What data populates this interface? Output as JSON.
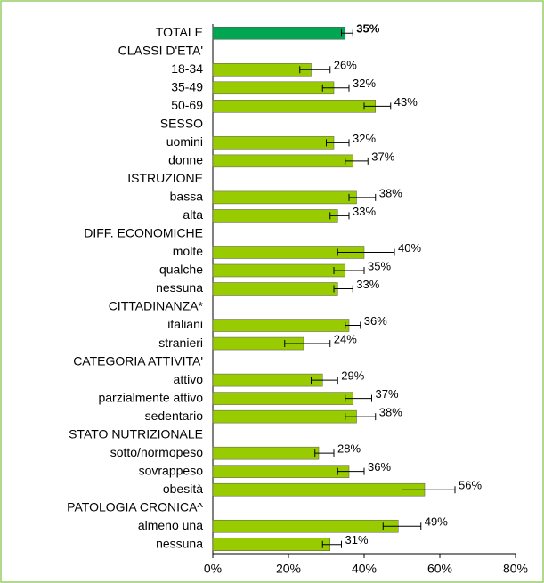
{
  "chart_data": {
    "type": "bar",
    "orientation": "horizontal",
    "categories": [
      "TOTALE",
      "CLASSI D'ETA'",
      "18-34",
      "35-49",
      "50-69",
      "SESSO",
      "uomini",
      "donne",
      "ISTRUZIONE",
      "bassa",
      "alta",
      "DIFF. ECONOMICHE",
      "molte",
      "qualche",
      "nessuna",
      "CITTADINANZA*",
      "italiani",
      "stranieri",
      "CATEGORIA ATTIVITA'",
      "attivo",
      "parzialmente attivo",
      "sedentario",
      "STATO NUTRIZIONALE",
      "sotto/normopeso",
      "sovrappeso",
      "obesità",
      "PATOLOGIA CRONICA^",
      "almeno una",
      "nessuna"
    ],
    "values": [
      35,
      null,
      26,
      32,
      43,
      null,
      32,
      37,
      null,
      38,
      33,
      null,
      40,
      35,
      33,
      null,
      36,
      24,
      null,
      29,
      37,
      38,
      null,
      28,
      36,
      56,
      null,
      49,
      31
    ],
    "value_labels": [
      "35%",
      null,
      "26%",
      "32%",
      "43%",
      null,
      "32%",
      "37%",
      null,
      "38%",
      "33%",
      null,
      "40%",
      "35%",
      "33%",
      null,
      "36%",
      "24%",
      null,
      "29%",
      "37%",
      "38%",
      null,
      "28%",
      "36%",
      "56%",
      null,
      "49%",
      "31%"
    ],
    "ci_low": [
      34,
      null,
      23,
      29,
      40,
      null,
      30,
      35,
      null,
      36,
      31,
      null,
      33,
      32,
      32,
      null,
      35,
      19,
      null,
      26,
      35,
      35,
      null,
      27,
      33,
      50,
      null,
      45,
      29
    ],
    "ci_high": [
      37,
      null,
      31,
      36,
      47,
      null,
      36,
      41,
      null,
      43,
      36,
      null,
      48,
      40,
      37,
      null,
      39,
      31,
      null,
      33,
      42,
      43,
      null,
      32,
      40,
      64,
      null,
      55,
      34
    ],
    "colors": [
      "#00a651",
      null,
      "#99cc00",
      "#99cc00",
      "#99cc00",
      null,
      "#99cc00",
      "#99cc00",
      null,
      "#99cc00",
      "#99cc00",
      null,
      "#99cc00",
      "#99cc00",
      "#99cc00",
      null,
      "#99cc00",
      "#99cc00",
      null,
      "#99cc00",
      "#99cc00",
      "#99cc00",
      null,
      "#99cc00",
      "#99cc00",
      "#99cc00",
      null,
      "#99cc00",
      "#99cc00"
    ],
    "xlim": [
      0,
      80
    ],
    "xticks": [
      {
        "value": 0,
        "label": "0%"
      },
      {
        "value": 20,
        "label": "20%"
      },
      {
        "value": 40,
        "label": "40%"
      },
      {
        "value": 60,
        "label": "60%"
      },
      {
        "value": 80,
        "label": "80%"
      }
    ]
  }
}
